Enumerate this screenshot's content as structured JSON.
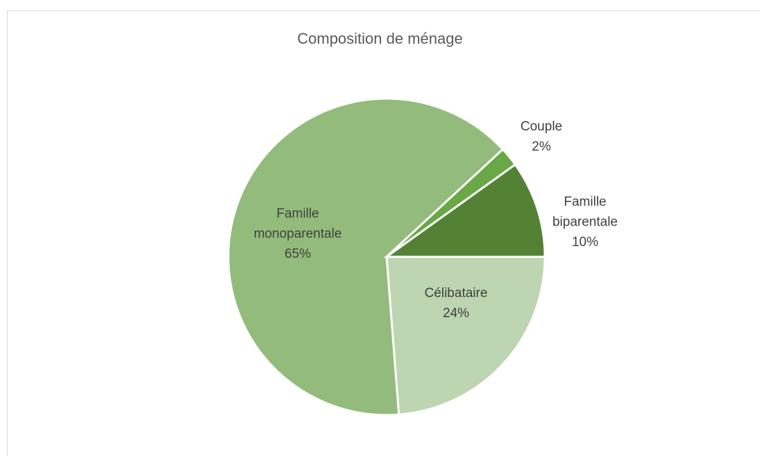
{
  "chart_data": {
    "type": "pie",
    "title": "Composition de ménage",
    "categories": [
      "Célibataire",
      "Famille monoparentale",
      "Couple",
      "Famille biparentale"
    ],
    "values": [
      24,
      65,
      2,
      10
    ],
    "value_labels": [
      "24%",
      "65%",
      "2%",
      "10%"
    ],
    "colors": [
      "#bdd5b0",
      "#93bb7b",
      "#6aa746",
      "#548235"
    ]
  }
}
